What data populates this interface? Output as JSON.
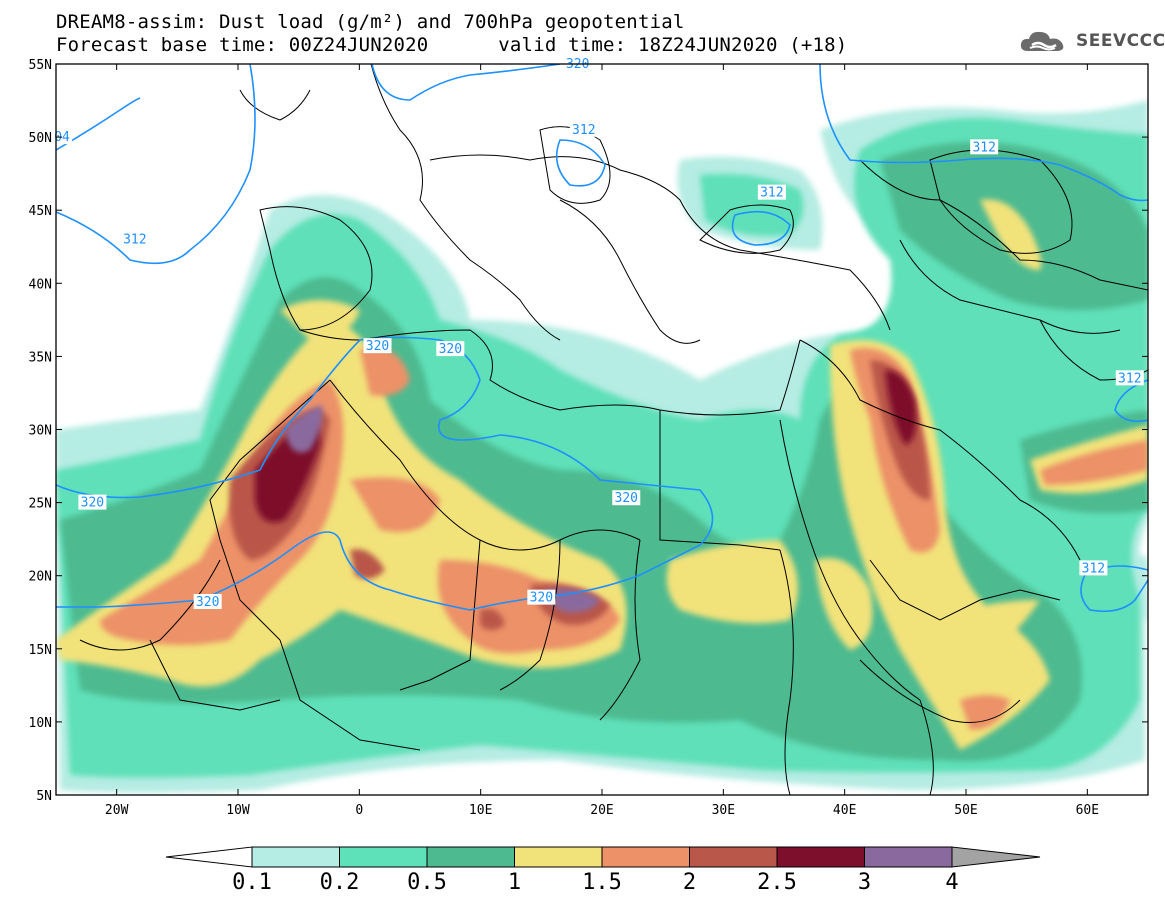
{
  "title": {
    "line1": "DREAM8-assim: Dust load (g/m²) and 700hPa geopotential",
    "line2": "Forecast base time: 00Z24JUN2020      valid time: 18Z24JUN2020 (+18)"
  },
  "logo": {
    "text": "SEEVCCC",
    "icon": "cloud-icon"
  },
  "map": {
    "lat_labels": [
      "55N",
      "50N",
      "45N",
      "40N",
      "35N",
      "30N",
      "25N",
      "20N",
      "15N",
      "10N",
      "5N"
    ],
    "lon_labels": [
      "20W",
      "10W",
      "0",
      "10E",
      "20E",
      "30E",
      "40E",
      "50E",
      "60E"
    ],
    "contour_labels": [
      {
        "text": "312",
        "lon": -18.5,
        "lat": 43.0
      },
      {
        "text": "320",
        "lon": -22,
        "lat": 25.0
      },
      {
        "text": "320",
        "lon": -12.5,
        "lat": 18.2
      },
      {
        "text": "320",
        "lon": 1.5,
        "lat": 35.7
      },
      {
        "text": "320",
        "lon": 7.5,
        "lat": 35.5
      },
      {
        "text": "320",
        "lon": 22,
        "lat": 25.3
      },
      {
        "text": "320",
        "lon": 15,
        "lat": 18.5
      },
      {
        "text": "312",
        "lon": 18.5,
        "lat": 50.5
      },
      {
        "text": "312",
        "lon": 34,
        "lat": 46.2
      },
      {
        "text": "312",
        "lon": 51.5,
        "lat": 49.3
      },
      {
        "text": "312",
        "lon": 63.5,
        "lat": 33.5
      },
      {
        "text": "312",
        "lon": 60.5,
        "lat": 20.5
      },
      {
        "text": "04",
        "lon": -24.5,
        "lat": 50.0
      },
      {
        "text": "320",
        "lon": 18,
        "lat": 55.0
      }
    ],
    "lon_range": [
      -25,
      65
    ],
    "lat_range": [
      5,
      55
    ]
  },
  "colorbar": {
    "labels": [
      "0.1",
      "0.2",
      "0.5",
      "1",
      "1.5",
      "2",
      "2.5",
      "3",
      "4"
    ],
    "colors": [
      "#ffffff",
      "#b5ece3",
      "#5ee0b8",
      "#4dba90",
      "#f2e27a",
      "#ec9168",
      "#b9574a",
      "#7e0f2c",
      "#8a6a9e",
      "#a3a3a3"
    ]
  },
  "colors": {
    "contour": "#1e90ff",
    "border": "#000000"
  }
}
